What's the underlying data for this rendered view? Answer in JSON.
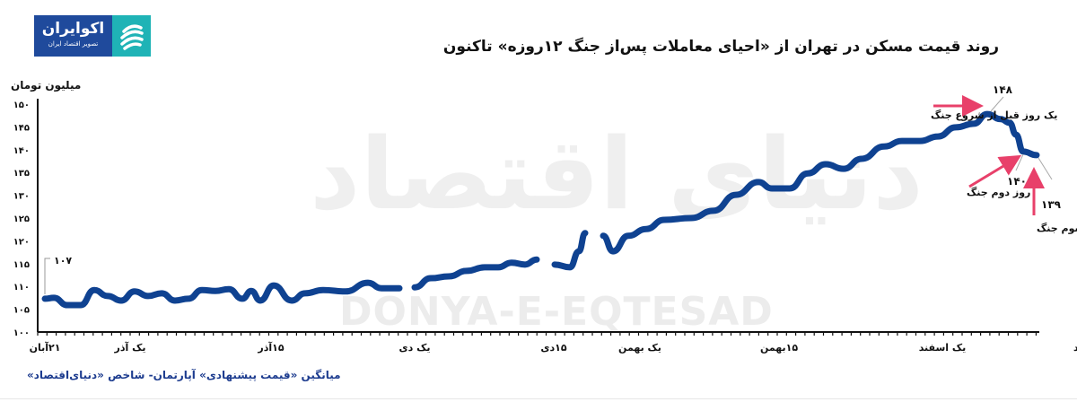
{
  "logo": {
    "name": "اکوایران",
    "tagline": "تصویر اقتصاد ایران",
    "colors": {
      "blue": "#1f4a9c",
      "teal": "#1fb3b6"
    }
  },
  "watermark": {
    "latin": "DONYA-E-EQTESAD",
    "persian": "دنیای اقتصاد"
  },
  "footer": {
    "source": "میانگین «قیمت پیشنهادی» آپارتمان- شاخص «دنیای‌اقتصاد»"
  },
  "chart_data": {
    "type": "line",
    "title": "روند قیمت مسکن در تهران از «احیای معاملات پس‌از جنگ ۱۲روزه» تاکنون",
    "ylabel": "میلیون تومان",
    "xlabel": "",
    "ylim": [
      100,
      150
    ],
    "y_ticks": [
      "۱۰۰",
      "۱۰۵",
      "۱۱۰",
      "۱۱۵",
      "۱۲۰",
      "۱۲۵",
      "۱۳۰",
      "۱۳۵",
      "۱۴۰",
      "۱۴۵",
      "۱۵۰"
    ],
    "y_tick_values": [
      100,
      105,
      110,
      115,
      120,
      125,
      130,
      135,
      140,
      145,
      150
    ],
    "x_ticks": [
      "۲۱آبان",
      "یک آذر",
      "۱۵آذر",
      "یک دی",
      "۱۵دی",
      "یک بهمن",
      "۱۵بهمن",
      "یک اسفند",
      "یازده اسفند"
    ],
    "grid": false,
    "line_color": "#0f4291",
    "values": [
      107.3,
      107.5,
      105.9,
      105.9,
      109.2,
      107.9,
      106.9,
      108.9,
      107.9,
      108.5,
      106.9,
      107.3,
      109.2,
      109,
      109.4,
      107.3,
      109,
      106.9,
      110.2,
      106.9,
      108.5,
      109.2,
      108.9,
      110.8,
      109.6,
      109.6,
      null,
      109.8,
      111.8,
      112.2,
      113.4,
      114.2,
      114.2,
      115.2,
      114.8,
      115.9,
      null,
      114.8,
      114.2,
      117.7,
      121.7,
      null,
      121.1,
      117.7,
      121.1,
      122.6,
      124.6,
      125,
      126.6,
      130.1,
      132.9,
      131.5,
      131.5,
      134.8,
      136.8,
      135.8,
      138,
      140.7,
      141.9,
      141.9,
      142.9,
      144.9,
      145.7,
      147.8,
      146.7,
      145.9,
      143.3,
      139.6,
      138.8
    ],
    "annotations": [
      {
        "value": "۱۰۷",
        "label": ""
      },
      {
        "value": "۱۴۸",
        "label": "یک روز قبل از شروع جنگ"
      },
      {
        "value": "۱۴۰",
        "label": "روز دوم جنگ"
      },
      {
        "value": "۱۳۹",
        "label": "روز سوم جنگ"
      }
    ],
    "annotation_arrow_color": "#e8406a"
  }
}
